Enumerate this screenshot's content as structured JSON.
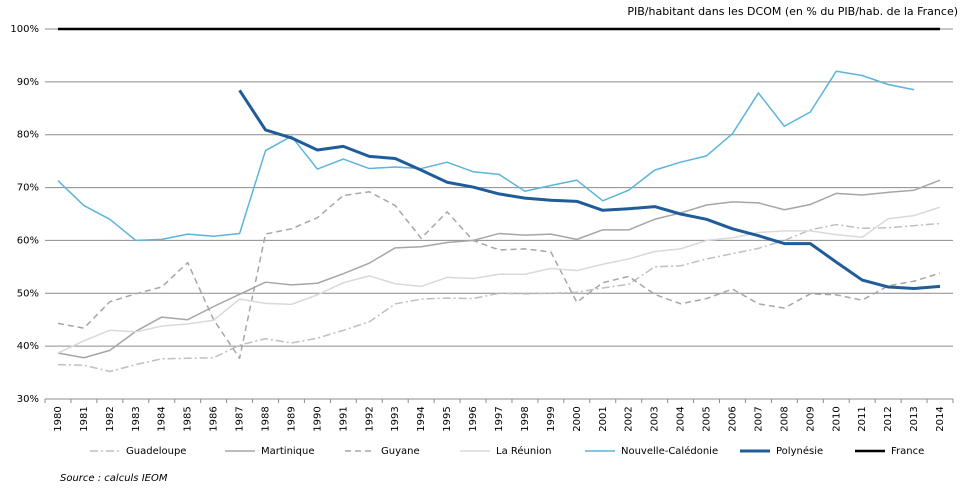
{
  "chart_data": {
    "type": "line",
    "title": "PIB/habitant dans les DCOM (en % du PIB/hab. de la France)",
    "source": "Source : calculs IEOM",
    "categories": [
      "1980",
      "1981",
      "1982",
      "1983",
      "1984",
      "1985",
      "1986",
      "1987",
      "1988",
      "1989",
      "1990",
      "1991",
      "1992",
      "1993",
      "1994",
      "1995",
      "1996",
      "1997",
      "1998",
      "1999",
      "2000",
      "2001",
      "2002",
      "2003",
      "2004",
      "2005",
      "2006",
      "2007",
      "2008",
      "2009",
      "2010",
      "2011",
      "2012",
      "2013",
      "2014"
    ],
    "ylim": [
      30,
      100
    ],
    "yticks": [
      {
        "value": 30,
        "label": "30%"
      },
      {
        "value": 40,
        "label": "40%"
      },
      {
        "value": 50,
        "label": "50%"
      },
      {
        "value": 60,
        "label": "60%"
      },
      {
        "value": 70,
        "label": "70%"
      },
      {
        "value": 80,
        "label": "80%"
      },
      {
        "value": 90,
        "label": "90%"
      },
      {
        "value": 100,
        "label": "100%"
      }
    ],
    "grid": true,
    "legend": "bottom",
    "series": [
      {
        "name": "Guadeloupe",
        "color": "#bfbfbf",
        "dash": "dashdot",
        "width": 1.5,
        "values": [
          36.5,
          36.4,
          35.2,
          36.5,
          37.6,
          37.7,
          37.8,
          40.2,
          41.4,
          40.6,
          41.5,
          43,
          44.6,
          48,
          48.9,
          49.1,
          49,
          50,
          49.9,
          50,
          50.2,
          51,
          51.7,
          55,
          55.2,
          56.5,
          57.5,
          58.5,
          60,
          62,
          63,
          62.3,
          62.4,
          62.8,
          63.2
        ]
      },
      {
        "name": "Martinique",
        "color": "#a6a6a6",
        "dash": "solid",
        "width": 1.5,
        "values": [
          38.7,
          37.8,
          39.2,
          42.8,
          45.5,
          45,
          47.5,
          49.8,
          52.1,
          51.6,
          51.9,
          53.7,
          55.7,
          58.6,
          58.8,
          59.6,
          60,
          61.3,
          61,
          61.2,
          60.2,
          62,
          62,
          64,
          65.2,
          66.7,
          67.3,
          67.1,
          65.8,
          66.8,
          68.9,
          68.6,
          69.1,
          69.5,
          71.4
        ]
      },
      {
        "name": "Guyane",
        "color": "#a6a6a6",
        "dash": "dash",
        "width": 1.5,
        "values": [
          44.3,
          43.4,
          48.4,
          49.9,
          51.2,
          55.8,
          45,
          37.7,
          61.2,
          62.2,
          64.3,
          68.5,
          69.2,
          66.6,
          60.4,
          65.4,
          60,
          58.2,
          58.4,
          57.8,
          48.3,
          52,
          53.2,
          49.8,
          48,
          49,
          50.8,
          48,
          47.2,
          49.9,
          49.7,
          48.7,
          51.4,
          52.3,
          53.8
        ]
      },
      {
        "name": "La Réunion",
        "color": "#d9d9d9",
        "dash": "solid",
        "width": 1.5,
        "values": [
          38.7,
          41,
          43,
          42.7,
          43.8,
          44.2,
          44.9,
          48.9,
          48.1,
          47.9,
          49.7,
          52,
          53.3,
          51.8,
          51.3,
          53,
          52.8,
          53.6,
          53.6,
          54.7,
          54.3,
          55.5,
          56.5,
          57.9,
          58.4,
          60,
          60.5,
          61.5,
          61.8,
          61.8,
          61.1,
          60.6,
          64.1,
          64.7,
          66.3
        ]
      },
      {
        "name": "Nouvelle-Calédonie",
        "color": "#5ab4dc",
        "dash": "solid",
        "width": 1.5,
        "values": [
          71.3,
          66.6,
          64,
          60,
          60.2,
          61.2,
          60.8,
          61.3,
          77,
          79.7,
          73.5,
          75.4,
          73.6,
          73.9,
          73.6,
          74.8,
          73,
          72.5,
          69.3,
          70.4,
          71.4,
          67.5,
          69.5,
          73.3,
          74.8,
          76,
          80.2,
          87.9,
          81.6,
          84.3,
          92,
          91.2,
          89.5,
          88.5,
          null
        ]
      },
      {
        "name": "Polynésie",
        "color": "#1f5c99",
        "dash": "solid",
        "width": 3,
        "values": [
          null,
          null,
          null,
          null,
          null,
          null,
          null,
          88.4,
          80.9,
          79.4,
          77.1,
          77.8,
          75.9,
          75.5,
          73.3,
          71,
          70.1,
          68.8,
          68,
          67.6,
          67.4,
          65.7,
          66,
          66.4,
          65,
          64,
          62.2,
          60.9,
          59.4,
          59.4,
          55.9,
          52.5,
          51.2,
          50.9,
          51.3
        ]
      },
      {
        "name": "France",
        "color": "#000000",
        "dash": "solid",
        "width": 2.5,
        "values": [
          100,
          100,
          100,
          100,
          100,
          100,
          100,
          100,
          100,
          100,
          100,
          100,
          100,
          100,
          100,
          100,
          100,
          100,
          100,
          100,
          100,
          100,
          100,
          100,
          100,
          100,
          100,
          100,
          100,
          100,
          100,
          100,
          100,
          100,
          100
        ]
      }
    ]
  }
}
